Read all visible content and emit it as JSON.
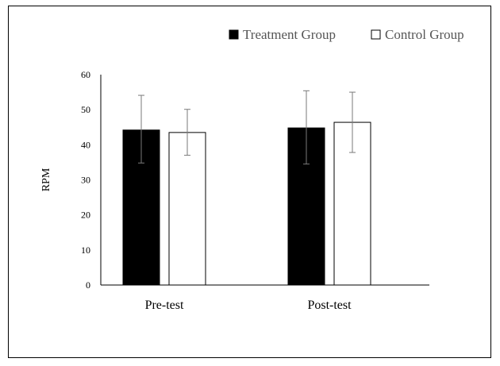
{
  "chart_data": {
    "type": "bar",
    "title": "",
    "xlabel": "",
    "ylabel": "RPM",
    "ylim": [
      0,
      60
    ],
    "yticks": [
      0,
      10,
      20,
      30,
      40,
      50,
      60
    ],
    "categories": [
      "Pre-test",
      "Post-test"
    ],
    "series": [
      {
        "name": "Treatment Group",
        "color": "#000000",
        "values": [
          44.2,
          44.8
        ],
        "error_low": [
          34.8,
          34.5
        ],
        "error_high": [
          54.1,
          55.4
        ]
      },
      {
        "name": "Control Group",
        "color": "#ffffff",
        "values": [
          43.5,
          46.4
        ],
        "error_low": [
          37.0,
          37.8
        ],
        "error_high": [
          50.1,
          55.0
        ]
      }
    ],
    "error_bars": true,
    "grid": false,
    "legend_position": "top-right"
  }
}
